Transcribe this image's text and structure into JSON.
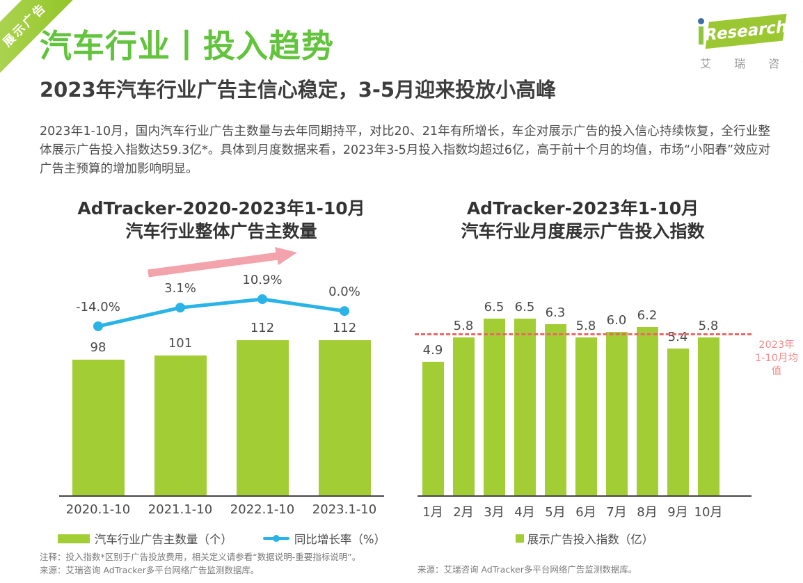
{
  "ribbon": {
    "label": "展示广告"
  },
  "header": {
    "title": "汽车行业丨投入趋势",
    "logo": {
      "brand_text": "Research",
      "brand_cn": "艾 瑞 咨 询"
    }
  },
  "subtitle": "2023年汽车行业广告主信心稳定，3-5月迎来投放小高峰",
  "paragraph": "2023年1-10月，国内汽车行业广告主数量与去年同期持平，对比20、21年有所增长，车企对展示广告的投入信心持续恢复，全行业整体展示广告投入指数达59.3亿*。具体到月度数据来看，2023年3-5月投入指数均超过6亿，高于前十个月的均值，市场“小阳春”效应对广告主预算的增加影响明显。",
  "colors": {
    "brand_green": "#a3cd35",
    "title_green": "#62c33c",
    "line_blue": "#29b3e6",
    "arrow_pink": "#f2a3ab",
    "avg_line_red": "#ec6666",
    "avg_label_red": "#f28b8b"
  },
  "chart_data": [
    {
      "type": "bar",
      "title": "AdTracker-2020-2023年1-10月 汽车行业整体广告主数量",
      "title_lines": [
        "AdTracker-2020-2023年1-10月",
        "汽车行业整体广告主数量"
      ],
      "categories": [
        "2020.1-10",
        "2021.1-10",
        "2022.1-10",
        "2023.1-10"
      ],
      "series": [
        {
          "name": "汽车行业广告主数量（个）",
          "type": "bar",
          "values": [
            98,
            101,
            112,
            112
          ]
        },
        {
          "name": "同比增长率（%）",
          "type": "line",
          "values": [
            -14.0,
            3.1,
            10.9,
            0.0
          ],
          "labels": [
            "-14.0%",
            "3.1%",
            "10.9%",
            "0.0%"
          ]
        }
      ],
      "legend_position": "bottom",
      "annotations": [
        "上升趋势箭头"
      ]
    },
    {
      "type": "bar",
      "title": "AdTracker-2023年1-10月 汽车行业月度展示广告投入指数",
      "title_lines": [
        "AdTracker-2023年1-10月",
        "汽车行业月度展示广告投入指数"
      ],
      "categories": [
        "1月",
        "2月",
        "3月",
        "4月",
        "5月",
        "6月",
        "7月",
        "8月",
        "9月",
        "10月"
      ],
      "values": [
        4.9,
        5.8,
        6.5,
        6.5,
        6.3,
        5.8,
        6.0,
        6.2,
        5.4,
        5.8
      ],
      "average": 5.92,
      "avg_label_lines": [
        "2023年",
        "1-10月均值"
      ],
      "legend": "展示广告投入指数（亿）",
      "legend_position": "bottom"
    }
  ],
  "footnotes": {
    "left_note": "注释：投入指数*区别于广告投放费用，相关定义请参看“数据说明-重要指标说明”。",
    "left_source": "来源：艾瑞咨询 AdTracker多平台网络广告监测数据库。",
    "right_source": "来源：艾瑞咨询 AdTracker多平台网络广告监测数据库。"
  }
}
